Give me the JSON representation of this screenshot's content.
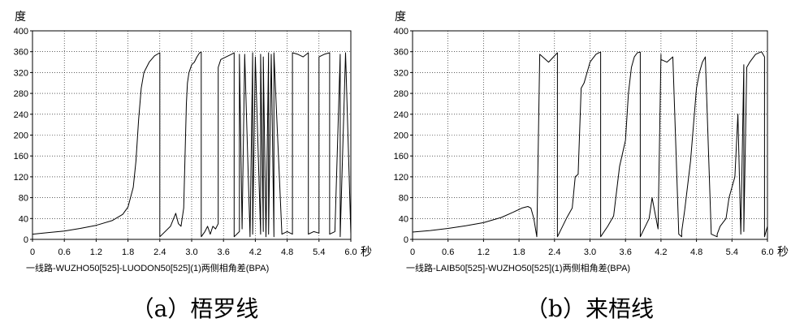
{
  "chart_data": [
    {
      "type": "line",
      "ylabel": "度",
      "xunit": "秒",
      "ylim": [
        0,
        400
      ],
      "xlim": [
        0,
        6.0
      ],
      "yticks": [
        0,
        40,
        80,
        120,
        160,
        200,
        240,
        280,
        320,
        360,
        400
      ],
      "xticks": [
        "0",
        "0.6",
        "1.2",
        "1.8",
        "2.4",
        "3.0",
        "3.6",
        "4.2",
        "4.8",
        "5.4",
        "6.0"
      ],
      "grid": true,
      "legend": "一线路-WUZHO50[525]-LUODON50[525](1)两侧相角差(BPA)",
      "caption": "（a）梧罗线",
      "series": [
        {
          "x": [
            0,
            0.3,
            0.6,
            0.9,
            1.2,
            1.5,
            1.7,
            1.8,
            1.9,
            1.95,
            2.0,
            2.05,
            2.1,
            2.2,
            2.3,
            2.4,
            2.4,
            2.6,
            2.7,
            2.75,
            2.8,
            2.85,
            2.9,
            2.92,
            2.95,
            3.0,
            3.05,
            3.1,
            3.15,
            3.18,
            3.18,
            3.25,
            3.3,
            3.35,
            3.4,
            3.45,
            3.5,
            3.5,
            3.55,
            3.65,
            3.75,
            3.8,
            3.8,
            3.9,
            3.9,
            3.95,
            4.0,
            4.1,
            4.15,
            4.15,
            4.2,
            4.3,
            4.3,
            4.35,
            4.35,
            4.4,
            4.45,
            4.45,
            4.5,
            4.55,
            4.55,
            4.7,
            4.8,
            4.9,
            4.9,
            5.0,
            5.1,
            5.2,
            5.2,
            5.3,
            5.4,
            5.4,
            5.5,
            5.6,
            5.6,
            5.7,
            5.8,
            5.8,
            5.9,
            6.0
          ],
          "y": [
            10,
            13,
            16,
            21,
            27,
            36,
            48,
            62,
            100,
            150,
            230,
            290,
            320,
            340,
            352,
            358,
            5,
            25,
            50,
            30,
            25,
            60,
            260,
            300,
            320,
            335,
            340,
            350,
            358,
            359,
            5,
            15,
            25,
            10,
            25,
            20,
            30,
            330,
            345,
            350,
            355,
            358,
            5,
            15,
            355,
            20,
            355,
            5,
            358,
            10,
            350,
            10,
            355,
            15,
            350,
            5,
            358,
            10,
            355,
            5,
            358,
            10,
            15,
            10,
            358,
            355,
            350,
            358,
            10,
            15,
            12,
            350,
            355,
            358,
            10,
            15,
            355,
            5,
            358,
            10
          ]
        }
      ]
    },
    {
      "type": "line",
      "ylabel": "度",
      "xunit": "秒",
      "ylim": [
        0,
        400
      ],
      "xlim": [
        0,
        6.0
      ],
      "yticks": [
        0,
        40,
        80,
        120,
        160,
        200,
        240,
        280,
        320,
        360,
        400
      ],
      "xticks": [
        "0",
        "0.6",
        "1.2",
        "1.8",
        "2.4",
        "3.0",
        "3.6",
        "4.2",
        "4.8",
        "5.4",
        "6.0"
      ],
      "grid": true,
      "legend": "一线路-LAIB50[525]-WUZHO50[525](1)两侧相角差(BPA)",
      "caption": "（b）来梧线",
      "series": [
        {
          "x": [
            0,
            0.3,
            0.6,
            0.9,
            1.2,
            1.5,
            1.7,
            1.85,
            1.95,
            2.0,
            2.05,
            2.1,
            2.15,
            2.3,
            2.45,
            2.45,
            2.6,
            2.7,
            2.75,
            2.8,
            2.85,
            2.9,
            2.95,
            3.0,
            3.1,
            3.15,
            3.18,
            3.18,
            3.3,
            3.4,
            3.5,
            3.6,
            3.65,
            3.7,
            3.75,
            3.8,
            3.85,
            3.85,
            4.0,
            4.05,
            4.1,
            4.15,
            4.2,
            4.2,
            4.3,
            4.4,
            4.5,
            4.55,
            4.55,
            4.6,
            4.7,
            4.8,
            4.85,
            4.9,
            4.95,
            5.05,
            5.15,
            5.15,
            5.2,
            5.3,
            5.35,
            5.45,
            5.5,
            5.55,
            5.6,
            5.6,
            5.65,
            5.7,
            5.8,
            5.9,
            5.95,
            5.95,
            6.0
          ],
          "y": [
            14,
            17,
            21,
            26,
            32,
            42,
            52,
            60,
            63,
            60,
            40,
            5,
            355,
            340,
            358,
            5,
            40,
            60,
            120,
            125,
            290,
            300,
            320,
            340,
            355,
            358,
            359,
            5,
            25,
            45,
            140,
            190,
            280,
            330,
            350,
            358,
            359,
            5,
            40,
            80,
            50,
            20,
            355,
            345,
            340,
            350,
            10,
            5,
            15,
            55,
            150,
            290,
            320,
            340,
            350,
            10,
            5,
            10,
            25,
            40,
            80,
            120,
            240,
            10,
            335,
            15,
            330,
            340,
            355,
            360,
            350,
            5,
            25
          ]
        }
      ]
    }
  ]
}
